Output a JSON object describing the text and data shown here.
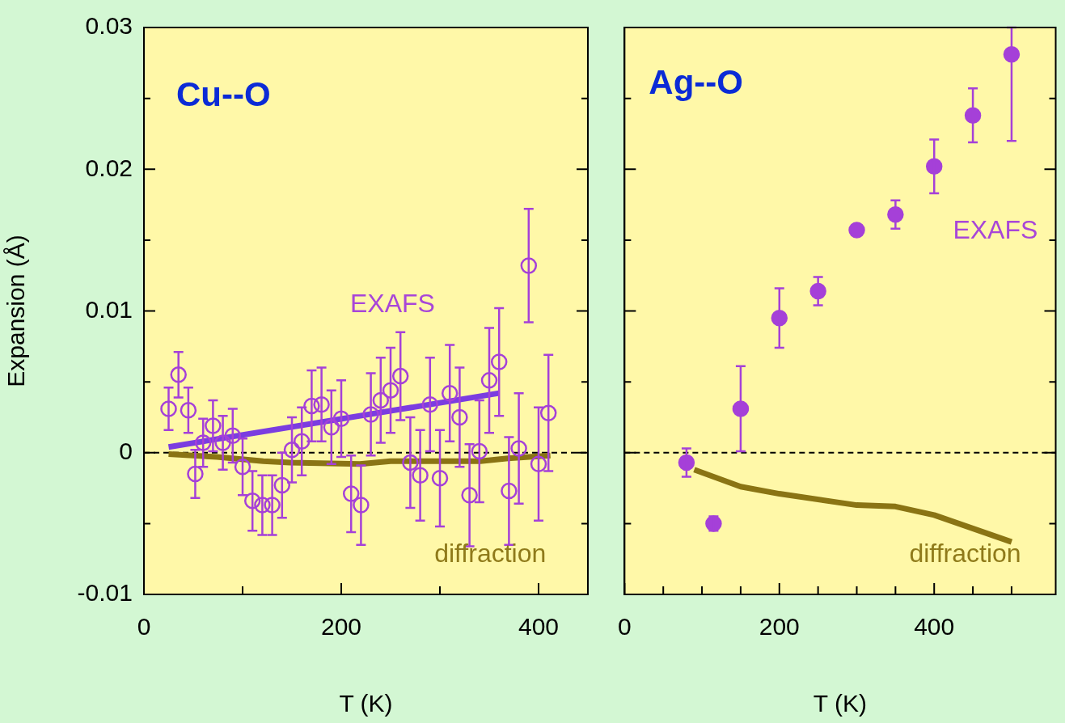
{
  "chart_data": [
    {
      "type": "scatter",
      "title": "Cu--O",
      "xlabel": "T (K)",
      "ylabel": "Expansion (Å)",
      "grid": false,
      "xlim": [
        0,
        450
      ],
      "xticks": [
        0,
        {
          "value": 100,
          "label": null
        },
        200,
        {
          "value": 300,
          "label": null
        },
        400
      ],
      "ylim": [
        -0.01,
        0.03
      ],
      "yticks": [
        -0.01,
        {
          "value": -0.005,
          "label": null
        },
        0,
        {
          "value": 0.005,
          "label": null
        },
        0.01,
        {
          "value": 0.015,
          "label": null
        },
        0.02,
        {
          "value": 0.025,
          "label": null
        },
        0.03
      ],
      "ref_lines": [
        {
          "axis": "y",
          "value": 0,
          "color": "#000000",
          "line_style": "dashed"
        }
      ],
      "annotations": [
        "EXAFS",
        "diffraction"
      ],
      "series": [
        {
          "type": "scatter",
          "marker": "circle",
          "color": "#a540d8",
          "x": [
            25,
            35,
            45,
            52,
            60,
            70,
            80,
            90,
            100,
            110,
            120,
            130,
            140,
            150,
            160,
            170,
            180,
            190,
            200,
            210,
            220,
            230,
            240,
            250,
            260,
            270,
            280,
            290,
            300,
            310,
            320,
            330,
            340,
            350,
            360,
            370,
            380,
            390,
            400,
            410
          ],
          "values": [
            0.0031,
            0.0055,
            0.003,
            -0.0015,
            0.0007,
            0.0019,
            0.0007,
            0.0012,
            -0.001,
            -0.0034,
            -0.0037,
            -0.0037,
            -0.0023,
            0.0002,
            0.0008,
            0.0033,
            0.0034,
            0.0018,
            0.0024,
            -0.0029,
            -0.0037,
            0.0027,
            0.0037,
            0.0044,
            0.0054,
            -0.0007,
            -0.0016,
            0.0034,
            -0.0018,
            0.0042,
            0.0025,
            -0.003,
            0.0001,
            0.0051,
            0.0064,
            -0.0027,
            0.0003,
            0.0132,
            -0.0008,
            0.0028
          ],
          "errors": [
            0.0015,
            0.0016,
            0.0016,
            0.0017,
            0.0017,
            0.0018,
            0.0019,
            0.0019,
            0.002,
            0.0021,
            0.0021,
            0.0021,
            0.0023,
            0.0023,
            0.0024,
            0.0025,
            0.0026,
            0.0026,
            0.0027,
            0.0027,
            0.0028,
            0.0029,
            0.003,
            0.003,
            0.0031,
            0.0032,
            0.0032,
            0.0033,
            0.0034,
            0.0034,
            0.0035,
            0.0036,
            0.0036,
            0.0037,
            0.0038,
            0.0038,
            0.0039,
            0.004,
            0.004,
            0.0041
          ]
        },
        {
          "type": "line",
          "color": "#7b3de0",
          "x": [
            25,
            360
          ],
          "values": [
            0.0004,
            0.0042
          ]
        },
        {
          "type": "line",
          "color": "#8a7414",
          "x": [
            25,
            74,
            121,
            148,
            219,
            250,
            341,
            369,
            412
          ],
          "values": [
            -0.0001,
            -0.0003,
            -0.0006,
            -0.0007,
            -0.0008,
            -0.0006,
            -0.0006,
            -0.0004,
            -0.0002
          ]
        }
      ]
    },
    {
      "type": "scatter",
      "title": "Ag--O",
      "xlabel": "T (K)",
      "grid": false,
      "tick_labels": "x",
      "xlim": [
        0,
        557
      ],
      "xticks": [
        0,
        {
          "value": 50,
          "label": null
        },
        {
          "value": 100,
          "label": null
        },
        {
          "value": 150,
          "label": null
        },
        200,
        {
          "value": 250,
          "label": null
        },
        {
          "value": 300,
          "label": null
        },
        {
          "value": 350,
          "label": null
        },
        400,
        {
          "value": 450,
          "label": null
        },
        {
          "value": 500,
          "label": null
        }
      ],
      "ylim": [
        -0.01,
        0.03
      ],
      "yticks": [
        -0.01,
        {
          "value": -0.005,
          "label": null
        },
        0,
        {
          "value": 0.005,
          "label": null
        },
        0.01,
        {
          "value": 0.015,
          "label": null
        },
        0.02,
        {
          "value": 0.025,
          "label": null
        },
        0.03
      ],
      "ref_lines": [
        {
          "axis": "y",
          "value": 0,
          "color": "#000000",
          "line_style": "dashed"
        }
      ],
      "annotations": [
        "EXAFS",
        "diffraction"
      ],
      "series": [
        {
          "type": "scatter",
          "marker": "circle",
          "color": "#a540d8",
          "x": [
            80,
            115,
            150,
            200,
            250,
            300,
            350,
            400,
            450,
            500
          ],
          "values": [
            -0.0007,
            -0.005,
            0.0031,
            0.0095,
            0.0114,
            0.0157,
            0.0168,
            0.0202,
            0.0238,
            0.0281
          ],
          "errors": [
            0.001,
            0.0005,
            0.003,
            0.0021,
            0.001,
            null,
            0.001,
            0.0019,
            0.0019,
            [
              0.022,
              0.03
            ]
          ]
        },
        {
          "type": "line",
          "color": "#8a7414",
          "x": [
            90,
            150,
            200,
            300,
            350,
            400,
            500
          ],
          "values": [
            -0.0012,
            -0.0024,
            -0.0029,
            -0.0037,
            -0.0038,
            -0.0044,
            -0.0063
          ]
        }
      ]
    }
  ]
}
